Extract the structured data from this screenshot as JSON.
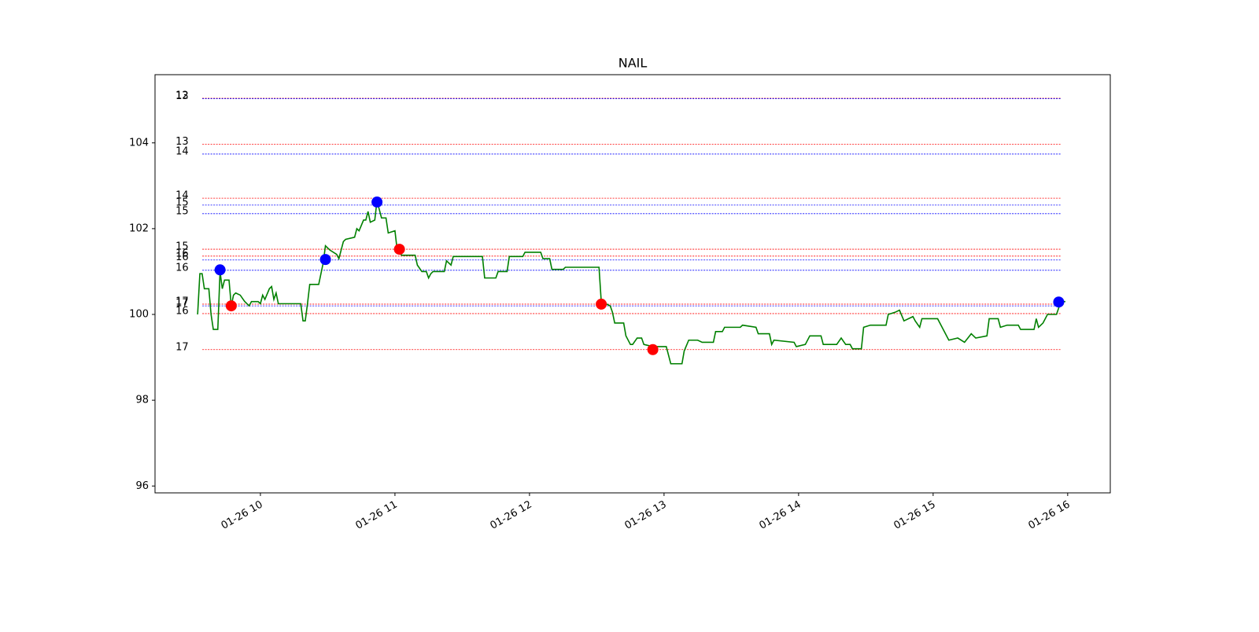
{
  "chart_data": {
    "type": "line",
    "title": "NAIL",
    "xlim": [
      "01-26 09:13",
      "01-26 16:19"
    ],
    "xticks": [
      "01-26 10",
      "01-26 11",
      "01-26 12",
      "01-26 13",
      "01-26 14",
      "01-26 15",
      "01-26 16"
    ],
    "ylim": [
      95.84,
      105.59
    ],
    "yticks": [
      96,
      98,
      100,
      102,
      104
    ],
    "x": [
      "01-26 09:32",
      "01-26 09:33",
      "01-26 09:34",
      "01-26 09:35",
      "01-26 09:37",
      "01-26 09:38",
      "01-26 09:39",
      "01-26 09:41",
      "01-26 09:42",
      "01-26 09:43",
      "01-26 09:44",
      "01-26 09:46",
      "01-26 09:47",
      "01-26 09:48",
      "01-26 09:49",
      "01-26 09:51",
      "01-26 09:53",
      "01-26 09:55",
      "01-26 09:56",
      "01-26 09:59",
      "01-26 10:00",
      "01-26 10:01",
      "01-26 10:02",
      "01-26 10:04",
      "01-26 10:05",
      "01-26 10:06",
      "01-26 10:07",
      "01-26 10:08",
      "01-26 10:18",
      "01-26 10:19",
      "01-26 10:20",
      "01-26 10:21",
      "01-26 10:22",
      "01-26 10:26",
      "01-26 10:28",
      "01-26 10:29",
      "01-26 10:31",
      "01-26 10:34",
      "01-26 10:35",
      "01-26 10:37",
      "01-26 10:38",
      "01-26 10:42",
      "01-26 10:43",
      "01-26 10:44",
      "01-26 10:46",
      "01-26 10:47",
      "01-26 10:48",
      "01-26 10:49",
      "01-26 10:51",
      "01-26 10:52",
      "01-26 10:54",
      "01-26 10:56",
      "01-26 10:57",
      "01-26 11:00",
      "01-26 11:01",
      "01-26 11:03",
      "01-26 11:09",
      "01-26 11:10",
      "01-26 11:12",
      "01-26 11:14",
      "01-26 11:15",
      "01-26 11:16",
      "01-26 11:17",
      "01-26 11:22",
      "01-26 11:23",
      "01-26 11:25",
      "01-26 11:26",
      "01-26 11:39",
      "01-26 11:40",
      "01-26 11:45",
      "01-26 11:46",
      "01-26 11:50",
      "01-26 11:51",
      "01-26 11:57",
      "01-26 11:58",
      "01-26 12:05",
      "01-26 12:06",
      "01-26 12:09",
      "01-26 12:10",
      "01-26 12:15",
      "01-26 12:16",
      "01-26 12:31",
      "01-26 12:32",
      "01-26 12:36",
      "01-26 12:37",
      "01-26 12:38",
      "01-26 12:42",
      "01-26 12:43",
      "01-26 12:45",
      "01-26 12:46",
      "01-26 12:48",
      "01-26 12:50",
      "01-26 12:51",
      "01-26 12:55",
      "01-26 13:01",
      "01-26 13:02",
      "01-26 13:03",
      "01-26 13:08",
      "01-26 13:09",
      "01-26 13:11",
      "01-26 13:15",
      "01-26 13:17",
      "01-26 13:22",
      "01-26 13:23",
      "01-26 13:26",
      "01-26 13:27",
      "01-26 13:34",
      "01-26 13:35",
      "01-26 13:41",
      "01-26 13:42",
      "01-26 13:47",
      "01-26 13:48",
      "01-26 13:49",
      "01-26 13:58",
      "01-26 13:59",
      "01-26 14:03",
      "01-26 14:05",
      "01-26 14:10",
      "01-26 14:11",
      "01-26 14:17",
      "01-26 14:19",
      "01-26 14:21",
      "01-26 14:23",
      "01-26 14:24",
      "01-26 14:28",
      "01-26 14:29",
      "01-26 14:32",
      "01-26 14:39",
      "01-26 14:40",
      "01-26 14:43",
      "01-26 14:45",
      "01-26 14:47",
      "01-26 14:51",
      "01-26 14:52",
      "01-26 14:54",
      "01-26 14:55",
      "01-26 15:02",
      "01-26 15:04",
      "01-26 15:07",
      "01-26 15:11",
      "01-26 15:14",
      "01-26 15:17",
      "01-26 15:19",
      "01-26 15:24",
      "01-26 15:25",
      "01-26 15:29",
      "01-26 15:30",
      "01-26 15:33",
      "01-26 15:38",
      "01-26 15:39",
      "01-26 15:45",
      "01-26 15:46",
      "01-26 15:47",
      "01-26 15:49",
      "01-26 15:51",
      "01-26 15:55",
      "01-26 15:57",
      "01-26 15:59"
    ],
    "series": [
      {
        "color": "#008000",
        "values": [
          100.0,
          100.95,
          100.95,
          100.6,
          100.6,
          100.0,
          99.65,
          99.65,
          101.0,
          100.6,
          100.8,
          100.8,
          100.2,
          100.45,
          100.5,
          100.45,
          100.3,
          100.2,
          100.3,
          100.3,
          100.25,
          100.45,
          100.35,
          100.6,
          100.65,
          100.35,
          100.5,
          100.25,
          100.25,
          99.85,
          99.85,
          100.25,
          100.7,
          100.7,
          101.2,
          101.6,
          101.5,
          101.4,
          101.3,
          101.7,
          101.75,
          101.8,
          102.0,
          101.95,
          102.2,
          102.2,
          102.4,
          102.15,
          102.2,
          102.65,
          102.25,
          102.25,
          101.9,
          101.95,
          101.5,
          101.38,
          101.38,
          101.15,
          101.0,
          101.0,
          100.85,
          100.95,
          101.0,
          101.0,
          101.25,
          101.15,
          101.35,
          101.35,
          100.85,
          100.85,
          101.0,
          101.0,
          101.35,
          101.35,
          101.45,
          101.45,
          101.3,
          101.3,
          101.05,
          101.05,
          101.1,
          101.1,
          100.3,
          100.2,
          100.05,
          99.8,
          99.8,
          99.5,
          99.3,
          99.3,
          99.45,
          99.45,
          99.3,
          99.25,
          99.25,
          99.05,
          98.85,
          98.85,
          99.15,
          99.4,
          99.4,
          99.35,
          99.35,
          99.6,
          99.6,
          99.7,
          99.7,
          99.75,
          99.7,
          99.55,
          99.55,
          99.3,
          99.4,
          99.35,
          99.25,
          99.3,
          99.5,
          99.5,
          99.3,
          99.3,
          99.45,
          99.3,
          99.3,
          99.2,
          99.2,
          99.7,
          99.75,
          99.75,
          100.0,
          100.05,
          100.1,
          99.85,
          99.95,
          99.85,
          99.7,
          99.9,
          99.9,
          99.7,
          99.4,
          99.45,
          99.35,
          99.55,
          99.45,
          99.5,
          99.9,
          99.9,
          99.7,
          99.75,
          99.75,
          99.65,
          99.65,
          99.9,
          99.7,
          99.8,
          100.0,
          100.0,
          100.3,
          100.3
        ]
      }
    ],
    "levels": [
      {
        "label": "12",
        "value": 105.04,
        "color": "#ff0000"
      },
      {
        "label": "13",
        "value": 105.03,
        "color": "#0000ff"
      },
      {
        "label": "13",
        "value": 103.97,
        "color": "#ff0000"
      },
      {
        "label": "14",
        "value": 103.74,
        "color": "#0000ff"
      },
      {
        "label": "14",
        "value": 102.71,
        "color": "#ff0000"
      },
      {
        "label": "15",
        "value": 102.55,
        "color": "#0000ff"
      },
      {
        "label": "15",
        "value": 102.35,
        "color": "#0000ff"
      },
      {
        "label": "15",
        "value": 101.52,
        "color": "#ff0000"
      },
      {
        "label": "16",
        "value": 101.36,
        "color": "#ff0000"
      },
      {
        "label": "16",
        "value": 101.27,
        "color": "#0000ff"
      },
      {
        "label": "16",
        "value": 101.03,
        "color": "#0000ff"
      },
      {
        "label": "17",
        "value": 100.24,
        "color": "#ff0000"
      },
      {
        "label": "17",
        "value": 100.2,
        "color": "#0000ff"
      },
      {
        "label": "16",
        "value": 100.02,
        "color": "#ff0000"
      },
      {
        "label": "17",
        "value": 99.18,
        "color": "#ff0000"
      }
    ],
    "markers": [
      {
        "x": "01-26 09:42",
        "y": 101.04,
        "color": "#0000ff"
      },
      {
        "x": "01-26 10:29",
        "y": 101.28,
        "color": "#0000ff"
      },
      {
        "x": "01-26 10:52",
        "y": 102.62,
        "color": "#0000ff"
      },
      {
        "x": "01-26 15:56",
        "y": 100.29,
        "color": "#0000ff"
      },
      {
        "x": "01-26 09:47",
        "y": 100.2,
        "color": "#ff0000"
      },
      {
        "x": "01-26 11:02",
        "y": 101.52,
        "color": "#ff0000"
      },
      {
        "x": "01-26 12:32",
        "y": 100.24,
        "color": "#ff0000"
      },
      {
        "x": "01-26 12:55",
        "y": 99.18,
        "color": "#ff0000"
      }
    ]
  }
}
